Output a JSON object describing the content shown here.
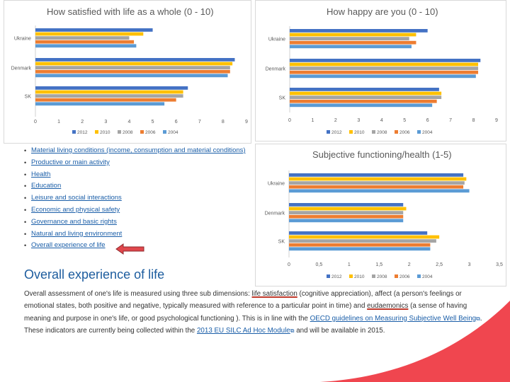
{
  "theme": {
    "accent": "#1c5c9e",
    "link": "#1a5ea8",
    "arrow": "#e0474c",
    "wave": "#f0464f"
  },
  "chart_data": [
    {
      "type": "bar",
      "orientation": "horizontal",
      "title": "How satisfied with life as a whole (0 - 10)",
      "categories": [
        "Ukraine",
        "Denmark",
        "SK"
      ],
      "xlim": [
        0,
        9
      ],
      "xticks": [
        "0",
        "1",
        "2",
        "3",
        "4",
        "5",
        "6",
        "7",
        "8",
        "9"
      ],
      "legend_position": "bottom",
      "series": [
        {
          "name": "2012",
          "color": "#4472c4",
          "values": [
            5.0,
            8.5,
            6.5
          ]
        },
        {
          "name": "2010",
          "color": "#ffc000",
          "values": [
            4.6,
            8.4,
            6.3
          ]
        },
        {
          "name": "2008",
          "color": "#a5a5a5",
          "values": [
            4.0,
            8.3,
            6.3
          ]
        },
        {
          "name": "2006",
          "color": "#ed7d31",
          "values": [
            4.2,
            8.3,
            6.0
          ]
        },
        {
          "name": "2004",
          "color": "#5b9bd5",
          "values": [
            4.3,
            8.2,
            5.5
          ]
        }
      ]
    },
    {
      "type": "bar",
      "orientation": "horizontal",
      "title": "How happy are you (0 - 10)",
      "categories": [
        "Ukraine",
        "Denmark",
        "SK"
      ],
      "xlim": [
        0,
        9
      ],
      "xticks": [
        "0",
        "1",
        "2",
        "3",
        "4",
        "5",
        "6",
        "7",
        "8",
        "9"
      ],
      "legend_position": "bottom",
      "series": [
        {
          "name": "2012",
          "color": "#4472c4",
          "values": [
            6.0,
            8.3,
            6.5
          ]
        },
        {
          "name": "2010",
          "color": "#ffc000",
          "values": [
            5.5,
            8.2,
            6.6
          ]
        },
        {
          "name": "2008",
          "color": "#a5a5a5",
          "values": [
            5.2,
            8.2,
            6.6
          ]
        },
        {
          "name": "2006",
          "color": "#ed7d31",
          "values": [
            5.5,
            8.2,
            6.4
          ]
        },
        {
          "name": "2004",
          "color": "#5b9bd5",
          "values": [
            5.3,
            8.1,
            6.2
          ]
        }
      ]
    },
    {
      "type": "bar",
      "orientation": "horizontal",
      "title": "Subjective functioning/health (1-5)",
      "categories": [
        "Ukraine",
        "Denmark",
        "SK"
      ],
      "xlim": [
        0,
        3.5
      ],
      "xticks": [
        "0",
        "0,5",
        "1",
        "1,5",
        "2",
        "2,5",
        "3",
        "3,5"
      ],
      "legend_position": "bottom",
      "series": [
        {
          "name": "2012",
          "color": "#4472c4",
          "values": [
            2.9,
            1.9,
            2.3
          ]
        },
        {
          "name": "2010",
          "color": "#ffc000",
          "values": [
            2.95,
            1.95,
            2.5
          ]
        },
        {
          "name": "2008",
          "color": "#a5a5a5",
          "values": [
            2.92,
            1.9,
            2.45
          ]
        },
        {
          "name": "2006",
          "color": "#ed7d31",
          "values": [
            2.9,
            1.9,
            2.35
          ]
        },
        {
          "name": "2004",
          "color": "#5b9bd5",
          "values": [
            3.0,
            1.9,
            2.35
          ]
        }
      ]
    }
  ],
  "list": {
    "items": [
      "Material living conditions (income, consumption and material conditions)",
      "Productive or main activity",
      "Health",
      "Education",
      "Leisure and social interactions",
      "Economic and physical safety",
      "Governance and basic rights",
      "Natural and living environment",
      "Overall experience of life"
    ]
  },
  "section": {
    "heading": "Overall experience of life",
    "p1": "Overall assessment of one's life is measured using three sub dimensions: ",
    "life_satisfaction": "life satisfaction",
    "p2": " (cognitive appreciation), affect (a person's feelings or emotional states, both positive and negative, typically measured with reference to a particular point in time) and ",
    "eudaemonics": "eudaemonics",
    "p3": " (a sense of having meaning and purpose in one's life, or good psychological functioning ). This is in line with the ",
    "link1": "OECD guidelines on Measuring Subjective Well Being",
    "p4": ". These indicators are currently being collected within the ",
    "link2": "2013 EU SILC Ad Hoc Module",
    "p5": " and will be available in 2015."
  }
}
